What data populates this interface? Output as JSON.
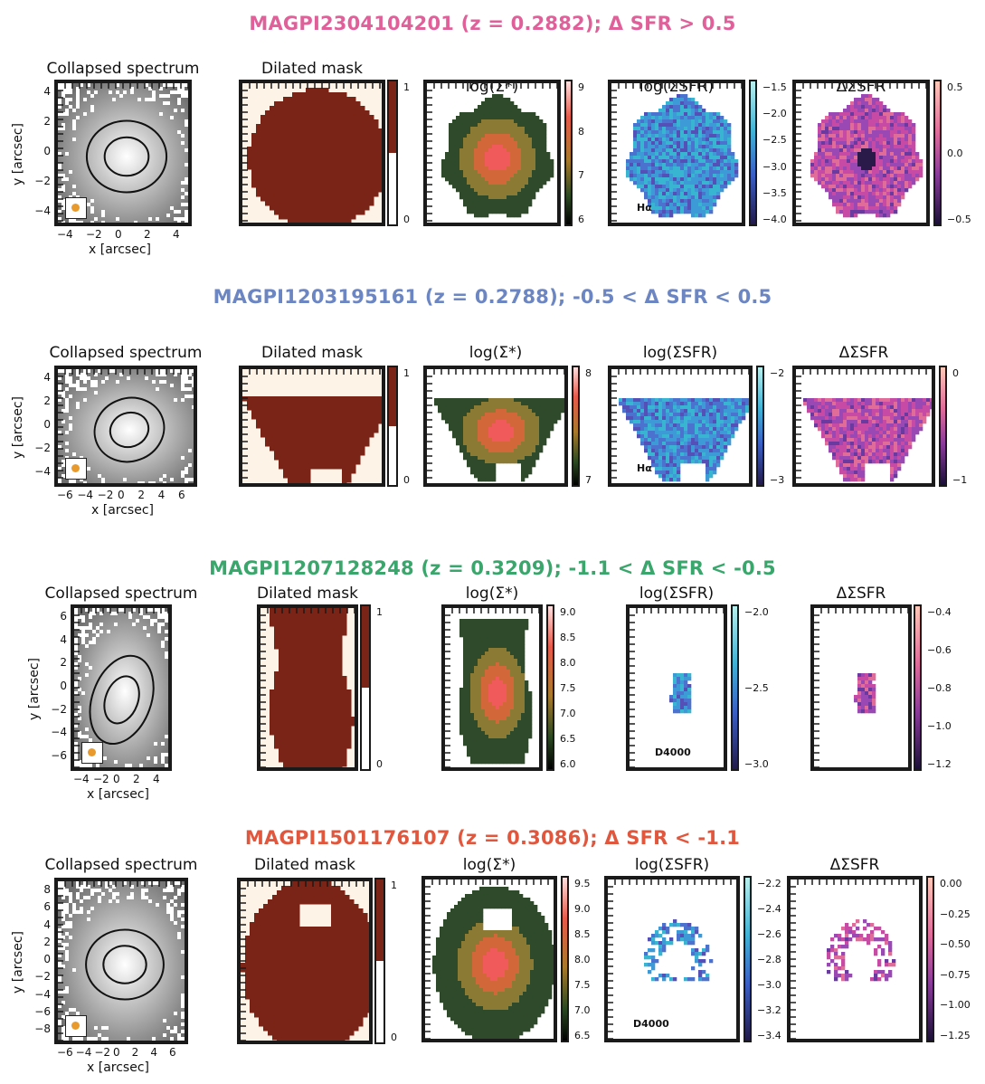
{
  "rows": [
    {
      "title": "MAGPI2304104201 (z = 0.2882); Δ SFR > 0.5",
      "color": "#e0609a",
      "tracer": "Hα",
      "collapsed": {
        "title": "Collapsed spectrum",
        "xticks": [
          "−4",
          "−2",
          "0",
          "2",
          "4"
        ],
        "yticks": [
          "4",
          "2",
          "0",
          "−2",
          "−4"
        ],
        "xlabel": "x [arcsec]",
        "ylabel": "y [arcsec]"
      },
      "mask": {
        "title": "Dilated mask",
        "ticks": [
          "1",
          "0"
        ]
      },
      "mass": {
        "title": "log(Σ*)",
        "ticks": [
          "9",
          "8",
          "7",
          "6"
        ]
      },
      "sfr": {
        "title": "log(ΣSFR)",
        "ticks": [
          "−1.5",
          "−2.0",
          "−2.5",
          "−3.0",
          "−3.5",
          "−4.0"
        ]
      },
      "dsfr": {
        "title": "ΔΣSFR",
        "ticks": [
          "0.5",
          "0.0",
          "−0.5"
        ]
      }
    },
    {
      "title": "MAGPI1203195161 (z = 0.2788); -0.5 < Δ SFR < 0.5",
      "color": "#6b86c2",
      "tracer": "Hα",
      "collapsed": {
        "title": "Collapsed spectrum",
        "xticks": [
          "−6",
          "−4",
          "−2",
          "0",
          "2",
          "4",
          "6"
        ],
        "yticks": [
          "4",
          "2",
          "0",
          "−2",
          "−4"
        ],
        "xlabel": "x [arcsec]",
        "ylabel": "y [arcsec]"
      },
      "mask": {
        "title": "Dilated mask",
        "ticks": [
          "1",
          "0"
        ]
      },
      "mass": {
        "title": "log(Σ*)",
        "ticks": [
          "8",
          "7"
        ]
      },
      "sfr": {
        "title": "log(ΣSFR)",
        "ticks": [
          "−2",
          "−3"
        ]
      },
      "dsfr": {
        "title": "ΔΣSFR",
        "ticks": [
          "0",
          "−1"
        ]
      }
    },
    {
      "title": "MAGPI1207128248 (z = 0.3209); -1.1 < Δ SFR < -0.5",
      "color": "#3aa66b",
      "tracer": "D4000",
      "collapsed": {
        "title": "Collapsed spectrum",
        "xticks": [
          "−4",
          "−2",
          "0",
          "2",
          "4"
        ],
        "yticks": [
          "6",
          "4",
          "2",
          "0",
          "−2",
          "−4",
          "−6"
        ],
        "xlabel": "x [arcsec]",
        "ylabel": "y [arcsec]"
      },
      "mask": {
        "title": "Dilated mask",
        "ticks": [
          "1",
          "0"
        ]
      },
      "mass": {
        "title": "log(Σ*)",
        "ticks": [
          "9.0",
          "8.5",
          "8.0",
          "7.5",
          "7.0",
          "6.5",
          "6.0"
        ]
      },
      "sfr": {
        "title": "log(ΣSFR)",
        "ticks": [
          "−2.0",
          "−2.5",
          "−3.0"
        ]
      },
      "dsfr": {
        "title": "ΔΣSFR",
        "ticks": [
          "−0.4",
          "−0.6",
          "−0.8",
          "−1.0",
          "−1.2"
        ]
      }
    },
    {
      "title": "MAGPI1501176107 (z = 0.3086); Δ SFR < -1.1",
      "color": "#e0573e",
      "tracer": "D4000",
      "collapsed": {
        "title": "Collapsed spectrum",
        "xticks": [
          "−6",
          "−4",
          "−2",
          "0",
          "2",
          "4",
          "6"
        ],
        "yticks": [
          "8",
          "6",
          "4",
          "2",
          "0",
          "−2",
          "−4",
          "−6",
          "−8"
        ],
        "xlabel": "x [arcsec]",
        "ylabel": "y [arcsec]"
      },
      "mask": {
        "title": "Dilated mask",
        "ticks": [
          "1",
          "0"
        ]
      },
      "mass": {
        "title": "log(Σ*)",
        "ticks": [
          "9.5",
          "9.0",
          "8.5",
          "8.0",
          "7.5",
          "7.0",
          "6.5"
        ]
      },
      "sfr": {
        "title": "log(ΣSFR)",
        "ticks": [
          "−2.2",
          "−2.4",
          "−2.6",
          "−2.8",
          "−3.0",
          "−3.2",
          "−3.4"
        ]
      },
      "dsfr": {
        "title": "ΔΣSFR",
        "ticks": [
          "0.00",
          "−0.25",
          "−0.50",
          "−0.75",
          "−1.00",
          "−1.25"
        ]
      }
    }
  ]
}
